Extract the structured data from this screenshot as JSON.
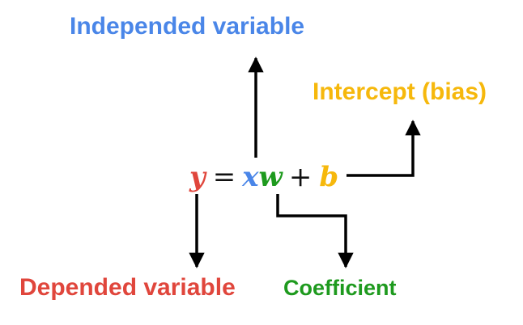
{
  "labels": {
    "independent": "Independed variable",
    "intercept": "Intercept (bias)",
    "dependent": "Depended variable",
    "coefficient": "Coefficient"
  },
  "equation": {
    "y": "y",
    "equals": "=",
    "x": "x",
    "w": "w",
    "plus": "+",
    "b": "b"
  },
  "colors": {
    "independent": "#4a86e8",
    "intercept": "#f6b80c",
    "dependent": "#e0463c",
    "coefficient": "#1e9a1e",
    "arrow": "#000000"
  }
}
